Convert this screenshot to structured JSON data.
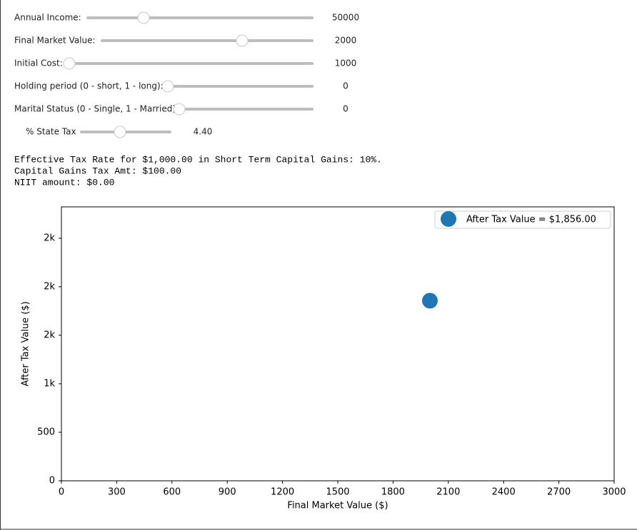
{
  "controls": [
    {
      "label": "Annual Income:",
      "value": "50000"
    },
    {
      "label": "Final Market Value:",
      "value": "2000"
    },
    {
      "label": "Initial Cost:",
      "value": "1000"
    },
    {
      "label": "Holding period (0 - short, 1 - long):",
      "value": "0"
    },
    {
      "label": "Marital Status (0 - Single, 1 - Married):",
      "value": "0"
    },
    {
      "label": "% State Tax",
      "value": "4.40"
    }
  ],
  "output": [
    "Effective Tax Rate for $1,000.00 in Short Term Capital Gains: 10%.",
    "Capital Gains Tax Amt: $100.00",
    "NIIT amount: $0.00"
  ],
  "chart_data": {
    "type": "scatter",
    "x_label": "Final Market Value ($)",
    "y_label": "After Tax Value ($)",
    "series": [
      {
        "name": "After Tax Value = $1,856.00",
        "color": "#1f77b4",
        "x": [
          2000
        ],
        "values": [
          1856
        ]
      }
    ],
    "xlim": [
      0,
      3000
    ],
    "xticks": [
      0,
      300,
      600,
      900,
      1200,
      1500,
      1800,
      2100,
      2400,
      2700,
      3000
    ],
    "ylim": [
      0,
      2823
    ],
    "yticks": [
      0,
      500,
      {
        "value": 1000,
        "label": "1k"
      },
      {
        "value": 1500,
        "label": "2k"
      },
      {
        "value": 2000,
        "label": "2k"
      },
      {
        "value": 2500,
        "label": "2k"
      }
    ],
    "legend": "upper right"
  }
}
